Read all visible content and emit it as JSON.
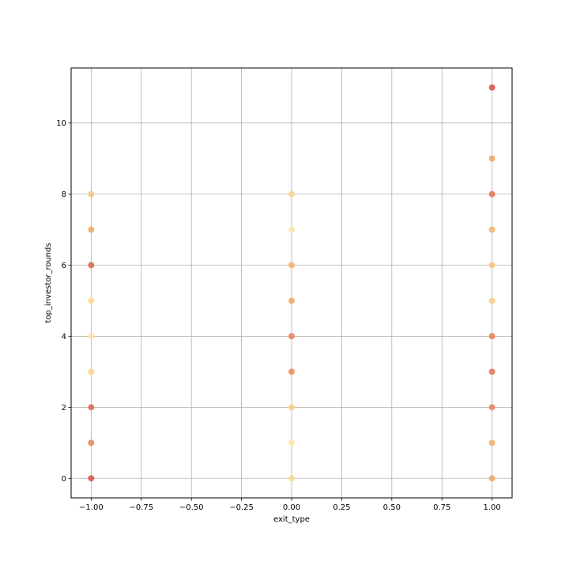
{
  "chart_data": {
    "type": "scatter",
    "title": "",
    "xlabel": "exit_type",
    "ylabel": "top_investor_rounds",
    "xlim": [
      -1.1,
      1.1
    ],
    "ylim": [
      -0.55,
      11.55
    ],
    "xticks": [
      -1.0,
      -0.75,
      -0.5,
      -0.25,
      0.0,
      0.25,
      0.5,
      0.75,
      1.0
    ],
    "xtick_labels": [
      "−1.00",
      "−0.75",
      "−0.50",
      "−0.25",
      "0.00",
      "0.25",
      "0.50",
      "0.75",
      "1.00"
    ],
    "yticks": [
      0,
      2,
      4,
      6,
      8,
      10
    ],
    "ytick_labels": [
      "0",
      "2",
      "4",
      "6",
      "8",
      "10"
    ],
    "grid": true,
    "legend": "none",
    "points": [
      {
        "x": -1,
        "y": 0,
        "color": "#d94f45"
      },
      {
        "x": -1,
        "y": 1,
        "color": "#e8845a"
      },
      {
        "x": -1,
        "y": 2,
        "color": "#e0654f"
      },
      {
        "x": -1,
        "y": 3,
        "color": "#fdd58a"
      },
      {
        "x": -1,
        "y": 4,
        "color": "#fee4a6"
      },
      {
        "x": -1,
        "y": 5,
        "color": "#fdd98f"
      },
      {
        "x": -1,
        "y": 6,
        "color": "#e0654f"
      },
      {
        "x": -1,
        "y": 7,
        "color": "#f0a560"
      },
      {
        "x": -1,
        "y": 8,
        "color": "#f7c57a"
      },
      {
        "x": 0,
        "y": 0,
        "color": "#fdd98f"
      },
      {
        "x": 0,
        "y": 1,
        "color": "#fee4a6"
      },
      {
        "x": 0,
        "y": 2,
        "color": "#fbce80"
      },
      {
        "x": 0,
        "y": 3,
        "color": "#eb8a55"
      },
      {
        "x": 0,
        "y": 4,
        "color": "#e8805a"
      },
      {
        "x": 0,
        "y": 5,
        "color": "#f0a560"
      },
      {
        "x": 0,
        "y": 6,
        "color": "#f4b06a"
      },
      {
        "x": 0,
        "y": 7,
        "color": "#fee4a6"
      },
      {
        "x": 0,
        "y": 8,
        "color": "#fdd58a"
      },
      {
        "x": 1,
        "y": 0,
        "color": "#f0a560"
      },
      {
        "x": 1,
        "y": 1,
        "color": "#f4b06a"
      },
      {
        "x": 1,
        "y": 2,
        "color": "#e8805a"
      },
      {
        "x": 1,
        "y": 3,
        "color": "#e57355"
      },
      {
        "x": 1,
        "y": 4,
        "color": "#e8805a"
      },
      {
        "x": 1,
        "y": 5,
        "color": "#fbce80"
      },
      {
        "x": 1,
        "y": 6,
        "color": "#f7c57a"
      },
      {
        "x": 1,
        "y": 7,
        "color": "#f4b06a"
      },
      {
        "x": 1,
        "y": 8,
        "color": "#e57355"
      },
      {
        "x": 1,
        "y": 9,
        "color": "#f0a560"
      },
      {
        "x": 1,
        "y": 11,
        "color": "#d94f45"
      }
    ]
  }
}
